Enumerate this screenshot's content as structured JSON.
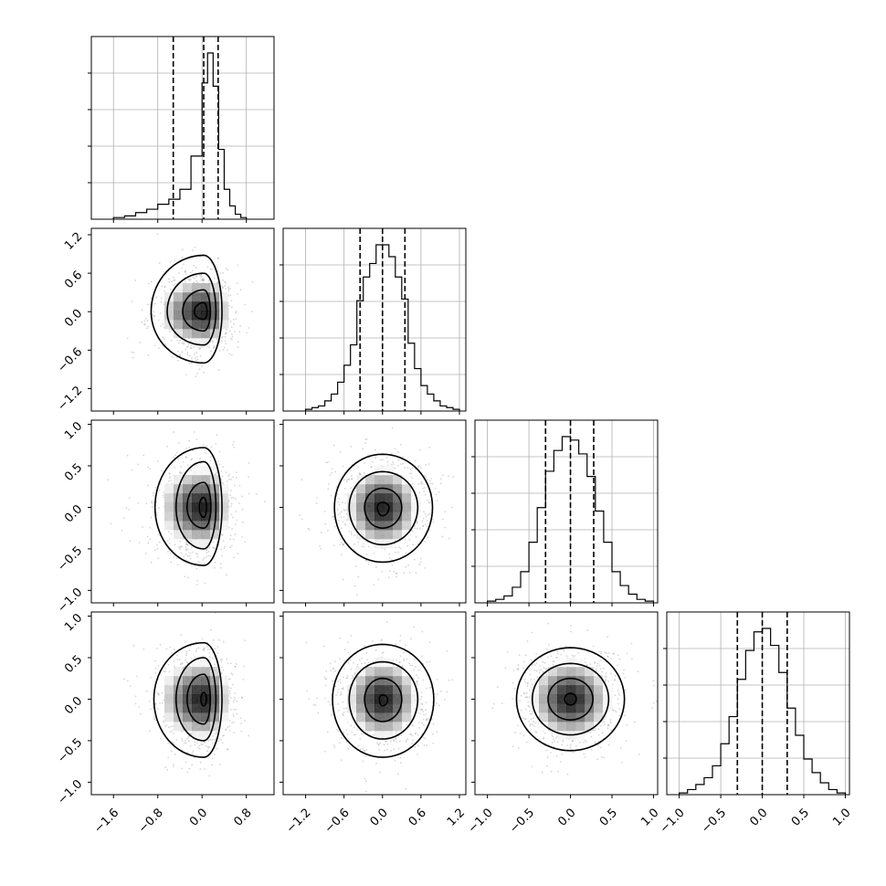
{
  "chart_data": {
    "type": "corner",
    "title": "",
    "n_params": 4,
    "grid": true,
    "ranges": [
      [
        -2.0,
        1.3
      ],
      [
        -1.55,
        1.3
      ],
      [
        -1.15,
        1.05
      ],
      [
        -1.15,
        1.05
      ]
    ],
    "ticks": [
      [
        -1.6,
        -0.8,
        0.0,
        0.8
      ],
      [
        -1.2,
        -0.6,
        0.0,
        0.6,
        1.2
      ],
      [
        -1.0,
        -0.5,
        0.0,
        0.5,
        1.0
      ],
      [
        -1.0,
        -0.5,
        0.0,
        0.5,
        1.0
      ]
    ],
    "tick_labels": [
      [
        "−1.6",
        "−0.8",
        "0.0",
        "0.8"
      ],
      [
        "−1.2",
        "−0.6",
        "0.0",
        "0.6",
        "1.2"
      ],
      [
        "−1.0",
        "−0.5",
        "0.0",
        "0.5",
        "1.0"
      ],
      [
        "−1.0",
        "−0.5",
        "0.0",
        "0.5",
        "1.0"
      ]
    ],
    "quantiles": [
      [
        -0.52,
        0.03,
        0.29
      ],
      [
        -0.35,
        0.0,
        0.35
      ],
      [
        -0.3,
        0.0,
        0.28
      ],
      [
        -0.3,
        0.0,
        0.3
      ]
    ],
    "histograms": [
      {
        "param": 0,
        "bin_edges": [
          -1.6,
          -1.4,
          -1.2,
          -1.0,
          -0.8,
          -0.6,
          -0.4,
          -0.2,
          0.0,
          0.1,
          0.2,
          0.3,
          0.4,
          0.5,
          0.6,
          0.7,
          0.8
        ],
        "counts": [
          1,
          2,
          4,
          6,
          9,
          12,
          18,
          38,
          82,
          100,
          80,
          42,
          18,
          8,
          3,
          1
        ]
      },
      {
        "param": 1,
        "bin_edges": [
          -1.2,
          -1.1,
          -1.0,
          -0.9,
          -0.8,
          -0.7,
          -0.6,
          -0.5,
          -0.4,
          -0.3,
          -0.2,
          -0.1,
          0.0,
          0.1,
          0.2,
          0.3,
          0.4,
          0.5,
          0.6,
          0.7,
          0.8,
          0.9,
          1.0,
          1.1,
          1.2
        ],
        "counts": [
          1,
          2,
          3,
          6,
          10,
          17,
          27,
          39,
          65,
          79,
          87,
          98,
          98,
          91,
          79,
          66,
          40,
          25,
          15,
          10,
          6,
          3,
          2,
          1
        ]
      },
      {
        "param": 2,
        "bin_edges": [
          -1.0,
          -0.9,
          -0.8,
          -0.7,
          -0.6,
          -0.5,
          -0.4,
          -0.3,
          -0.2,
          -0.1,
          0.0,
          0.1,
          0.2,
          0.3,
          0.4,
          0.5,
          0.6,
          0.7,
          0.8,
          0.9,
          1.0
        ],
        "counts": [
          1,
          2,
          4,
          9,
          18,
          35,
          55,
          76,
          88,
          96,
          94,
          86,
          73,
          53,
          35,
          18,
          10,
          5,
          2,
          1
        ]
      },
      {
        "param": 3,
        "bin_edges": [
          -1.0,
          -0.9,
          -0.8,
          -0.7,
          -0.6,
          -0.5,
          -0.4,
          -0.3,
          -0.2,
          -0.1,
          0.0,
          0.1,
          0.2,
          0.3,
          0.4,
          0.5,
          0.6,
          0.7,
          0.8,
          0.9,
          1.0
        ],
        "counts": [
          1,
          3,
          6,
          10,
          17,
          30,
          46,
          68,
          85,
          96,
          98,
          88,
          72,
          51,
          35,
          21,
          13,
          7,
          3,
          1
        ]
      }
    ],
    "pairs": [
      {
        "x_param": 0,
        "y_param": 1,
        "center": [
          0.03,
          0.0
        ],
        "sigma": [
          0.28,
          0.33
        ],
        "tail": "left",
        "contours": [
          {
            "rx": [
              0.17,
              0.06
            ],
            "ry": [
              0.12,
              0.14
            ]
          },
          {
            "rx": [
              0.38,
              0.12
            ],
            "ry": [
              0.3,
              0.34
            ]
          },
          {
            "rx": [
              0.66,
              0.22
            ],
            "ry": [
              0.52,
              0.6
            ]
          },
          {
            "rx": [
              0.95,
              0.33
            ],
            "ry": [
              0.8,
              0.88
            ]
          }
        ]
      },
      {
        "x_param": 0,
        "y_param": 2,
        "center": [
          0.03,
          0.0
        ],
        "sigma": [
          0.28,
          0.3
        ],
        "tail": "left",
        "contours": [
          {
            "rx": [
              0.08,
              0.05
            ],
            "ry": [
              0.12,
              0.12
            ]
          },
          {
            "rx": [
              0.3,
              0.13
            ],
            "ry": [
              0.25,
              0.3
            ]
          },
          {
            "rx": [
              0.5,
              0.22
            ],
            "ry": [
              0.5,
              0.55
            ]
          },
          {
            "rx": [
              0.88,
              0.33
            ],
            "ry": [
              0.7,
              0.72
            ]
          }
        ]
      },
      {
        "x_param": 1,
        "y_param": 2,
        "center": [
          0.0,
          0.0
        ],
        "sigma": [
          0.35,
          0.3
        ],
        "tail": "none",
        "contours": [
          {
            "rx": [
              0.08,
              0.1
            ],
            "ry": [
              0.1,
              0.06
            ]
          },
          {
            "rx": [
              0.28,
              0.3
            ],
            "ry": [
              0.25,
              0.23
            ]
          },
          {
            "rx": [
              0.52,
              0.55
            ],
            "ry": [
              0.45,
              0.43
            ]
          },
          {
            "rx": [
              0.75,
              0.78
            ],
            "ry": [
              0.66,
              0.64
            ]
          }
        ]
      },
      {
        "x_param": 0,
        "y_param": 3,
        "center": [
          0.03,
          0.0
        ],
        "sigma": [
          0.28,
          0.3
        ],
        "tail": "left",
        "contours": [
          {
            "rx": [
              0.05,
              0.05
            ],
            "ry": [
              0.08,
              0.08
            ]
          },
          {
            "rx": [
              0.3,
              0.12
            ],
            "ry": [
              0.3,
              0.3
            ]
          },
          {
            "rx": [
              0.5,
              0.22
            ],
            "ry": [
              0.5,
              0.5
            ]
          },
          {
            "rx": [
              0.9,
              0.33
            ],
            "ry": [
              0.7,
              0.68
            ]
          }
        ]
      },
      {
        "x_param": 1,
        "y_param": 3,
        "center": [
          0.0,
          0.0
        ],
        "sigma": [
          0.35,
          0.3
        ],
        "tail": "none",
        "contours": [
          {
            "rx": [
              0.05,
              0.08
            ],
            "ry": [
              0.08,
              0.05
            ]
          },
          {
            "rx": [
              0.28,
              0.3
            ],
            "ry": [
              0.27,
              0.25
            ]
          },
          {
            "rx": [
              0.52,
              0.55
            ],
            "ry": [
              0.48,
              0.45
            ]
          },
          {
            "rx": [
              0.78,
              0.8
            ],
            "ry": [
              0.7,
              0.66
            ]
          }
        ]
      },
      {
        "x_param": 2,
        "y_param": 3,
        "center": [
          0.0,
          0.0
        ],
        "sigma": [
          0.3,
          0.3
        ],
        "tail": "none",
        "contours": [
          {
            "rx": [
              0.07,
              0.07
            ],
            "ry": [
              0.07,
              0.07
            ]
          },
          {
            "rx": [
              0.27,
              0.27
            ],
            "ry": [
              0.25,
              0.25
            ]
          },
          {
            "rx": [
              0.46,
              0.46
            ],
            "ry": [
              0.43,
              0.43
            ]
          },
          {
            "rx": [
              0.65,
              0.65
            ],
            "ry": [
              0.62,
              0.62
            ]
          }
        ]
      }
    ],
    "colors": {
      "hist": "#000000",
      "contour": "#000000",
      "points": "#8a8a8a",
      "density_max": "#000000",
      "grid": "#b0b0b0"
    }
  }
}
